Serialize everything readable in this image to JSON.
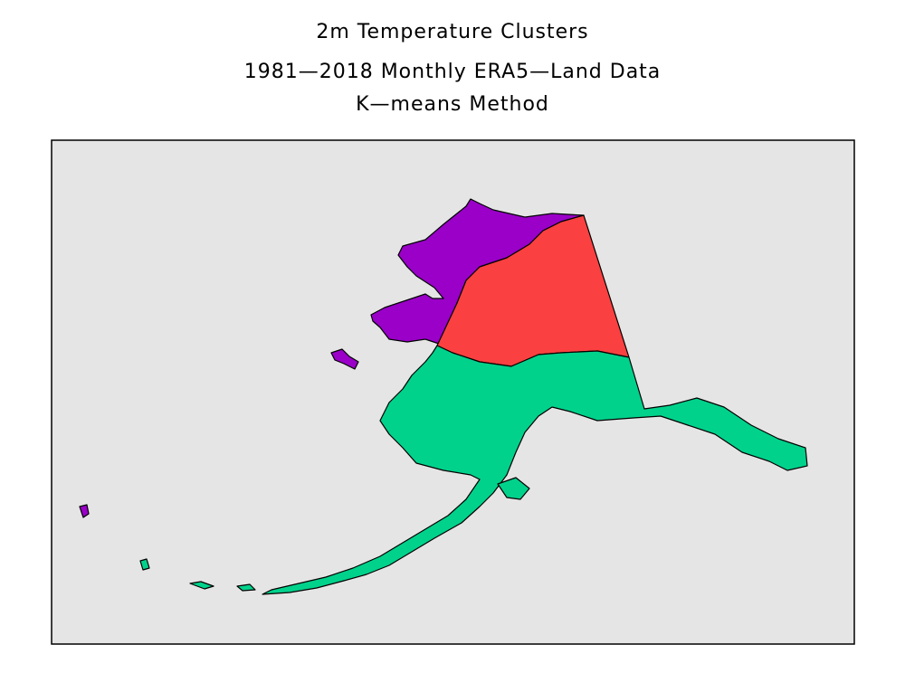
{
  "header": {
    "title": "2m Temperature Clusters",
    "subtitle": "1981—2018 Monthly ERA5—Land Data",
    "method": "K—means Method"
  }
}
